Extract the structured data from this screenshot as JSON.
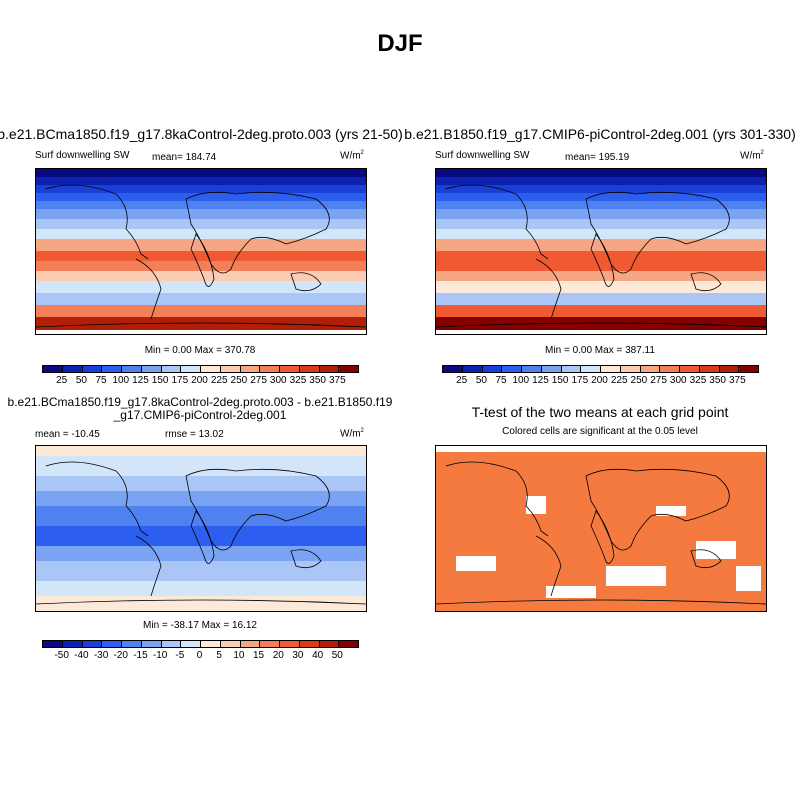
{
  "title": "DJF",
  "panels": [
    {
      "title": "b.e21.BCma1850.f19_g17.8kaControl-2deg.proto.003 (yrs 21-50)",
      "variable": "Surf downwelling SW",
      "mean": "mean= 184.74",
      "units": "W/m",
      "units_sup": "2",
      "minmax": "Min =   0.00 Max = 370.78"
    },
    {
      "title": "b.e21.B1850.f19_g17.CMIP6-piControl-2deg.001 (yrs 301-330)",
      "variable": "Surf downwelling SW",
      "mean": "mean= 195.19",
      "units": "W/m",
      "units_sup": "2",
      "minmax": "Min =   0.00 Max = 387.11"
    },
    {
      "title": "b.e21.BCma1850.f19_g17.8kaControl-2deg.proto.003 - b.e21.B1850.f19_g17.CMIP6-piControl-2deg.001",
      "mean": "mean = -10.45",
      "rmse": "rmse =  13.02",
      "units": "W/m",
      "units_sup": "2",
      "minmax": "Min = -38.17 Max =  16.12"
    },
    {
      "title": "T-test of the two means at each grid point",
      "subtitle": "Colored cells are significant at the 0.05 level"
    }
  ],
  "chart_data": {
    "type": "heatmap",
    "colorbar_colors": [
      "#0a0a80",
      "#0b22b0",
      "#1a3fd6",
      "#2c5ff0",
      "#4f82ef",
      "#7aa3f3",
      "#a9c6f6",
      "#d3e5f9",
      "#fde9d8",
      "#fbccb2",
      "#f7a683",
      "#f27f57",
      "#ef5a32",
      "#da3b12",
      "#b11f08",
      "#850000"
    ],
    "colorbar_ticks_abs": [
      "25",
      "50",
      "75",
      "100",
      "125",
      "150",
      "175",
      "200",
      "225",
      "250",
      "275",
      "300",
      "325",
      "350",
      "375"
    ],
    "colorbar_ticks_diff": [
      "-50",
      "-40",
      "-30",
      "-20",
      "-15",
      "-10",
      "-5",
      "0",
      "5",
      "10",
      "15",
      "20",
      "30",
      "40",
      "50"
    ],
    "significance_color": "#f47a3f"
  }
}
